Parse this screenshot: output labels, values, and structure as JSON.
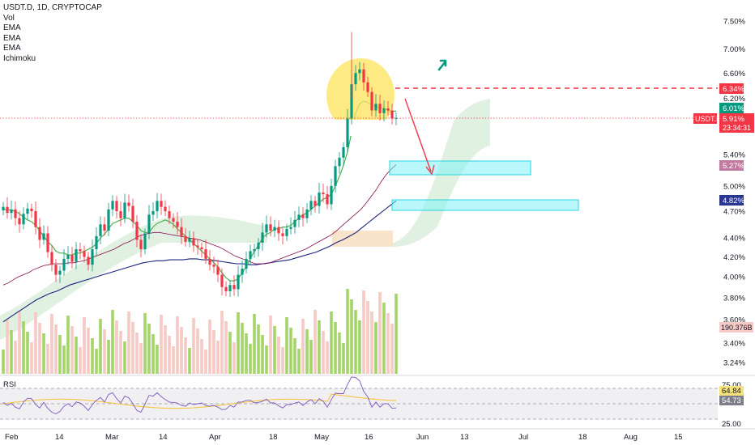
{
  "header": {
    "symbol_line": "USDT.D, 1D, CRYPTOCAP",
    "indicators": [
      "Vol",
      "EMA",
      "EMA",
      "EMA",
      "Ichimoku"
    ]
  },
  "colors": {
    "up": "#089981",
    "down": "#f23645",
    "volume_up": "#a5d46a",
    "volume_down": "#f7c9c5",
    "ema_fast": "#4caf50",
    "ema_mid": "#880e4f",
    "ema_slow": "#1a237e",
    "cloud_green": "#c8e6c9",
    "cloud_orange": "#f5d9b5",
    "highlight_cap": "#ffeb3b",
    "zone_fill": "#7ff0f5",
    "arrow_red": "#f23645",
    "arrow_green": "#089981",
    "rsi_line": "#7e57c2",
    "rsi_ma": "#f5c542"
  },
  "price_axis": {
    "ticks": [
      "7.50%",
      "7.00%",
      "6.60%",
      "6.20%",
      "5.40%",
      "5.00%",
      "4.70%",
      "4.40%",
      "4.20%",
      "4.00%",
      "3.80%",
      "3.60%",
      "3.40%",
      "3.24%"
    ],
    "scale": "log"
  },
  "tags": {
    "resistance": "6.34%",
    "ema_fast": "6.01%",
    "symbol": "USDT.D",
    "last_price": "5.91%",
    "countdown": "23:34:31",
    "ema_mid": "5.27%",
    "ema_slow": "4.82%",
    "volume": "190.376B"
  },
  "rsi": {
    "label": "RSI",
    "ticks": [
      "75.00",
      "25.00"
    ],
    "tags": [
      "64.84",
      "54.73"
    ],
    "levels": [
      70,
      50,
      30
    ]
  },
  "time_axis": {
    "labels": [
      "Feb",
      "14",
      "Mar",
      "14",
      "Apr",
      "18",
      "May",
      "16",
      "Jun",
      "13",
      "Jul",
      "18",
      "Aug",
      "15"
    ]
  },
  "chart_data": {
    "type": "candlestick",
    "y_unit": "%",
    "y_range": [
      3.2,
      7.7
    ],
    "series_close": [
      4.75,
      4.68,
      4.72,
      4.62,
      4.55,
      4.67,
      4.73,
      4.7,
      4.52,
      4.38,
      4.45,
      4.25,
      4.12,
      4.02,
      4.06,
      4.18,
      4.22,
      4.15,
      4.28,
      4.26,
      4.2,
      4.12,
      4.28,
      4.42,
      4.55,
      4.48,
      4.72,
      4.82,
      4.7,
      4.62,
      4.8,
      4.76,
      4.58,
      4.38,
      4.28,
      4.45,
      4.66,
      4.7,
      4.82,
      4.75,
      4.7,
      4.62,
      4.58,
      4.52,
      4.42,
      4.36,
      4.4,
      4.32,
      4.3,
      4.28,
      4.18,
      4.12,
      4.1,
      4.02,
      3.9,
      3.86,
      3.92,
      3.88,
      4.02,
      4.08,
      4.18,
      4.26,
      4.28,
      4.35,
      4.46,
      4.55,
      4.48,
      4.52,
      4.45,
      4.42,
      4.5,
      4.52,
      4.6,
      4.66,
      4.62,
      4.72,
      4.82,
      4.76,
      4.92,
      4.9,
      4.78,
      5.0,
      5.25,
      5.36,
      5.5,
      5.9,
      6.42,
      6.6,
      6.66,
      6.45,
      6.3,
      6.02,
      6.12,
      5.98,
      6.05,
      6.02,
      5.9,
      5.91
    ],
    "ema_fast": [
      4.72,
      4.72,
      4.71,
      4.7,
      4.67,
      4.63,
      4.6,
      4.58,
      4.54,
      4.48,
      4.42,
      4.36,
      4.32,
      4.26,
      4.24,
      4.24,
      4.22,
      4.22,
      4.24,
      4.24,
      4.26,
      4.28,
      4.3,
      4.34,
      4.4,
      4.44,
      4.5,
      4.56,
      4.58,
      4.6,
      4.62,
      4.62,
      4.58,
      4.54,
      4.48,
      4.46,
      4.46,
      4.52,
      4.56,
      4.58,
      4.6,
      4.58,
      4.55,
      4.5,
      4.46,
      4.42,
      4.38,
      4.34,
      4.3,
      4.26,
      4.22,
      4.18,
      4.14,
      4.1,
      4.04,
      3.99,
      3.96,
      3.96,
      3.98,
      4.04,
      4.1,
      4.18,
      4.26,
      4.32,
      4.4,
      4.44,
      4.46,
      4.5,
      4.5,
      4.52,
      4.52,
      4.54,
      4.58,
      4.62,
      4.66,
      4.68,
      4.72,
      4.76,
      4.8,
      4.84,
      4.86,
      4.9,
      5.0,
      5.12,
      5.26,
      5.44,
      5.7,
      5.98,
      6.12,
      6.16,
      6.14,
      6.1,
      6.08,
      6.06,
      6.05,
      6.02,
      6.01,
      6.01
    ],
    "ema_mid": [
      3.92,
      3.94,
      3.97,
      4.0,
      4.02,
      4.04,
      4.07,
      4.09,
      4.11,
      4.12,
      4.13,
      4.13,
      4.13,
      4.14,
      4.14,
      4.15,
      4.16,
      4.18,
      4.2,
      4.22,
      4.24,
      4.26,
      4.28,
      4.31,
      4.34,
      4.36,
      4.39,
      4.42,
      4.44,
      4.45,
      4.46,
      4.46,
      4.45,
      4.44,
      4.43,
      4.42,
      4.41,
      4.4,
      4.39,
      4.38,
      4.36,
      4.34,
      4.32,
      4.3,
      4.27,
      4.24,
      4.21,
      4.19,
      4.17,
      4.15,
      4.13,
      4.13,
      4.13,
      4.14,
      4.16,
      4.18,
      4.2,
      4.22,
      4.24,
      4.26,
      4.28,
      4.31,
      4.34,
      4.37,
      4.4,
      4.43,
      4.47,
      4.52,
      4.57,
      4.62,
      4.67,
      4.72,
      4.79,
      4.87,
      4.95,
      5.05,
      5.14,
      5.21,
      5.27
    ],
    "ema_slow": [
      3.58,
      3.62,
      3.66,
      3.7,
      3.74,
      3.78,
      3.81,
      3.84,
      3.86,
      3.89,
      3.92,
      3.94,
      3.96,
      3.98,
      4.0,
      4.02,
      4.04,
      4.06,
      4.08,
      4.1,
      4.12,
      4.14,
      4.15,
      4.16,
      4.16,
      4.17,
      4.17,
      4.17,
      4.18,
      4.18,
      4.17,
      4.17,
      4.16,
      4.15,
      4.14,
      4.13,
      4.13,
      4.12,
      4.12,
      4.13,
      4.14,
      4.15,
      4.16,
      4.17,
      4.19,
      4.21,
      4.23,
      4.25,
      4.28,
      4.31,
      4.35,
      4.38,
      4.42,
      4.46,
      4.52,
      4.58,
      4.64,
      4.7,
      4.76,
      4.82
    ]
  }
}
